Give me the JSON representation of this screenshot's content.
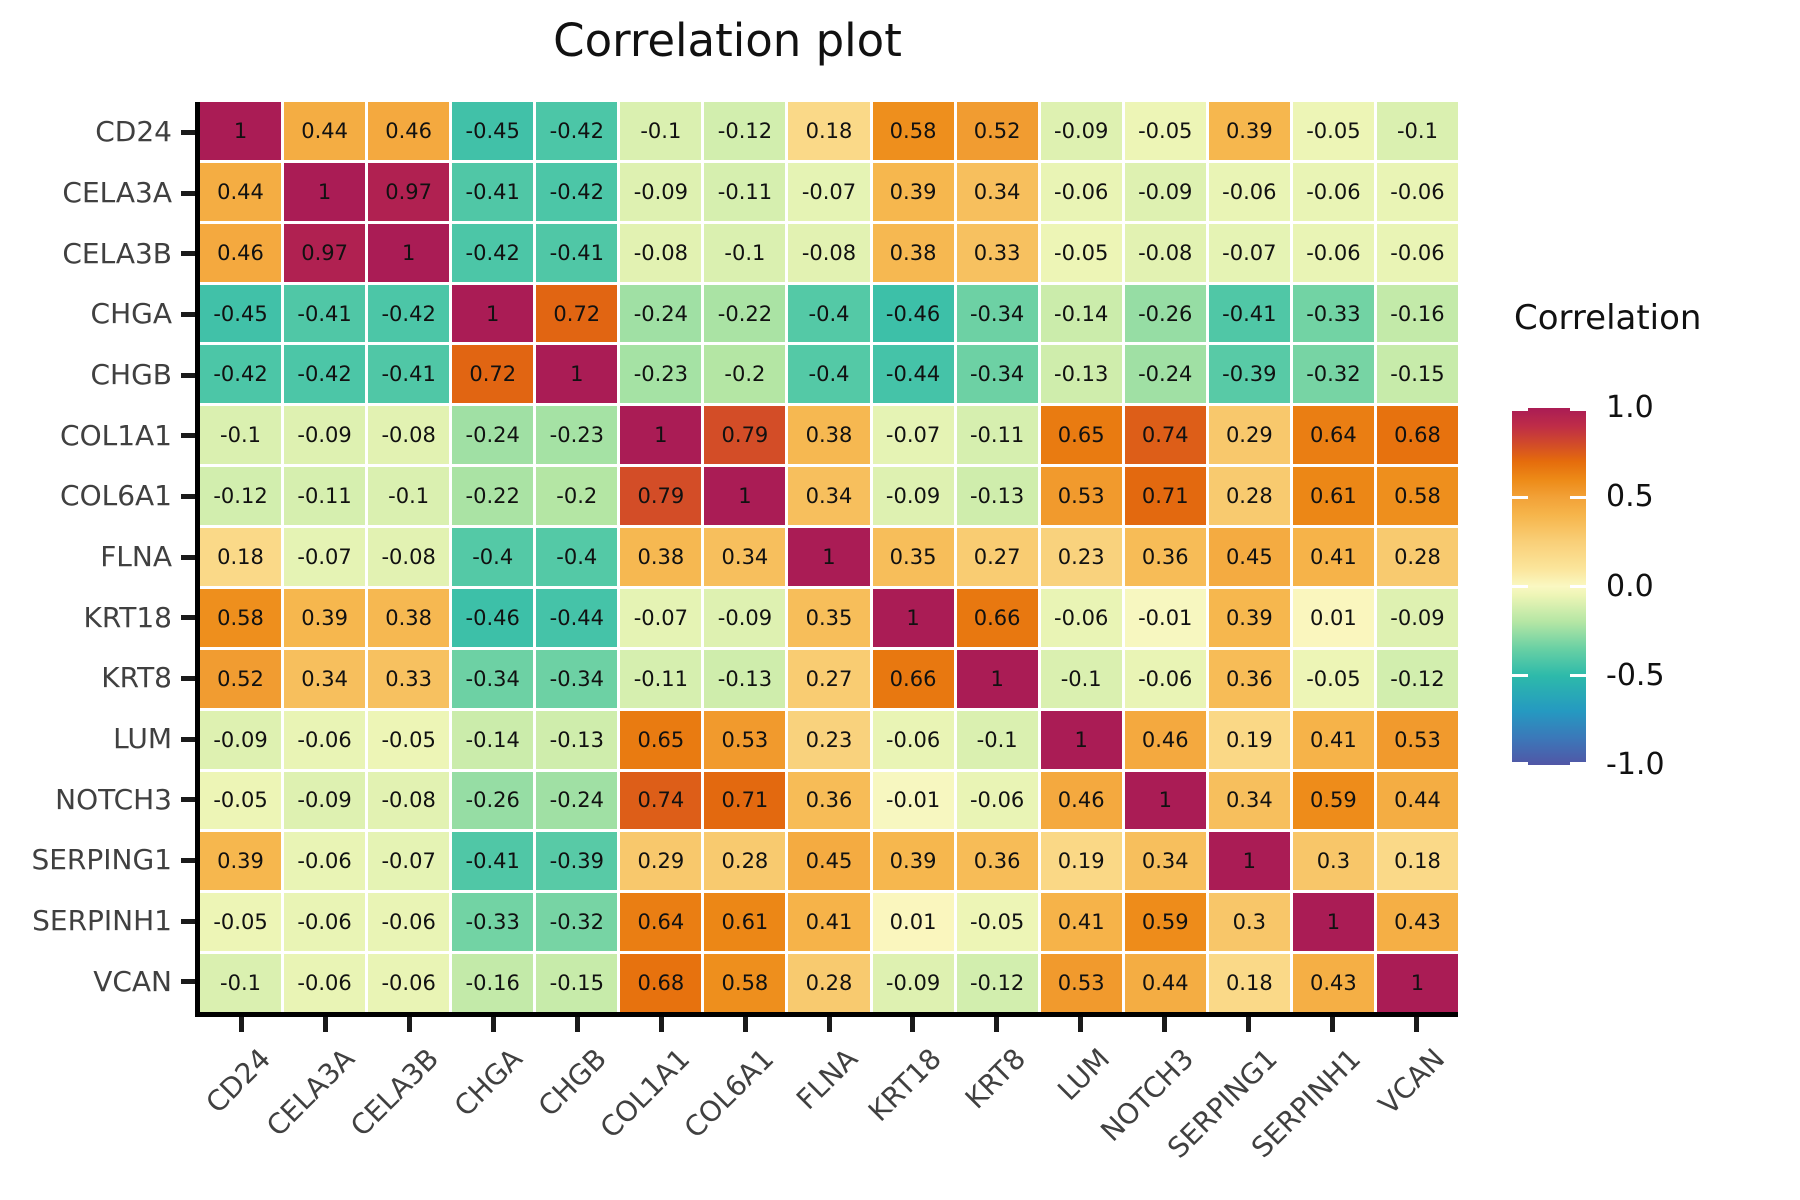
{
  "title": "Correlation plot",
  "legend": {
    "title": "Correlation",
    "tick_labels": [
      "1.0",
      "0.5",
      "0.0",
      "-0.5",
      "-1.0"
    ],
    "tick_values": [
      1.0,
      0.5,
      0.0,
      -0.5,
      -1.0
    ]
  },
  "chart_data": {
    "type": "heatmap",
    "title": "Correlation plot",
    "legend_title": "Correlation",
    "legend_position": "right",
    "value_range": [
      -1,
      1
    ],
    "legend_tick_labels": [
      "1.0",
      "0.5",
      "0.0",
      "-0.5",
      "-1.0"
    ],
    "legend_tick_values": [
      1.0,
      0.5,
      0.0,
      -0.5,
      -1.0
    ],
    "categories": [
      "CD24",
      "CELA3A",
      "CELA3B",
      "CHGA",
      "CHGB",
      "COL1A1",
      "COL6A1",
      "FLNA",
      "KRT18",
      "KRT8",
      "LUM",
      "NOTCH3",
      "SERPING1",
      "SERPINH1",
      "VCAN"
    ],
    "matrix": [
      [
        1,
        0.44,
        0.46,
        -0.45,
        -0.42,
        -0.1,
        -0.12,
        0.18,
        0.58,
        0.52,
        -0.09,
        -0.05,
        0.39,
        -0.05,
        -0.1
      ],
      [
        0.44,
        1,
        0.97,
        -0.41,
        -0.42,
        -0.09,
        -0.11,
        -0.07,
        0.39,
        0.34,
        -0.06,
        -0.09,
        -0.06,
        -0.06,
        -0.06
      ],
      [
        0.46,
        0.97,
        1,
        -0.42,
        -0.41,
        -0.08,
        -0.1,
        -0.08,
        0.38,
        0.33,
        -0.05,
        -0.08,
        -0.07,
        -0.06,
        -0.06
      ],
      [
        -0.45,
        -0.41,
        -0.42,
        1,
        0.72,
        -0.24,
        -0.22,
        -0.4,
        -0.46,
        -0.34,
        -0.14,
        -0.26,
        -0.41,
        -0.33,
        -0.16
      ],
      [
        -0.42,
        -0.42,
        -0.41,
        0.72,
        1,
        -0.23,
        -0.2,
        -0.4,
        -0.44,
        -0.34,
        -0.13,
        -0.24,
        -0.39,
        -0.32,
        -0.15
      ],
      [
        -0.1,
        -0.09,
        -0.08,
        -0.24,
        -0.23,
        1,
        0.79,
        0.38,
        -0.07,
        -0.11,
        0.65,
        0.74,
        0.29,
        0.64,
        0.68
      ],
      [
        -0.12,
        -0.11,
        -0.1,
        -0.22,
        -0.2,
        0.79,
        1,
        0.34,
        -0.09,
        -0.13,
        0.53,
        0.71,
        0.28,
        0.61,
        0.58
      ],
      [
        0.18,
        -0.07,
        -0.08,
        -0.4,
        -0.4,
        0.38,
        0.34,
        1,
        0.35,
        0.27,
        0.23,
        0.36,
        0.45,
        0.41,
        0.28
      ],
      [
        0.58,
        0.39,
        0.38,
        -0.46,
        -0.44,
        -0.07,
        -0.09,
        0.35,
        1,
        0.66,
        -0.06,
        -0.01,
        0.39,
        0.01,
        -0.09
      ],
      [
        0.52,
        0.34,
        0.33,
        -0.34,
        -0.34,
        -0.11,
        -0.13,
        0.27,
        0.66,
        1,
        -0.1,
        -0.06,
        0.36,
        -0.05,
        -0.12
      ],
      [
        -0.09,
        -0.06,
        -0.05,
        -0.14,
        -0.13,
        0.65,
        0.53,
        0.23,
        -0.06,
        -0.1,
        1,
        0.46,
        0.19,
        0.41,
        0.53
      ],
      [
        -0.05,
        -0.09,
        -0.08,
        -0.26,
        -0.24,
        0.74,
        0.71,
        0.36,
        -0.01,
        -0.06,
        0.46,
        1,
        0.34,
        0.59,
        0.44
      ],
      [
        0.39,
        -0.06,
        -0.07,
        -0.41,
        -0.39,
        0.29,
        0.28,
        0.45,
        0.39,
        0.36,
        0.19,
        0.34,
        1,
        0.3,
        0.18
      ],
      [
        -0.05,
        -0.06,
        -0.06,
        -0.33,
        -0.32,
        0.64,
        0.61,
        0.41,
        0.01,
        -0.05,
        0.41,
        0.59,
        0.3,
        1,
        0.43
      ],
      [
        -0.1,
        -0.06,
        -0.06,
        -0.16,
        -0.15,
        0.68,
        0.58,
        0.28,
        -0.09,
        -0.12,
        0.53,
        0.44,
        0.18,
        0.43,
        1
      ]
    ],
    "colors": {
      "cell_text": "#111111",
      "axis_label": "#404040",
      "axis_line": "#000000",
      "background": "#ffffff",
      "scale_stops": [
        {
          "v": -1.0,
          "c": "#5156A6"
        },
        {
          "v": -0.85,
          "c": "#3B78B9"
        },
        {
          "v": -0.7,
          "c": "#2599C1"
        },
        {
          "v": -0.5,
          "c": "#2DBAAA"
        },
        {
          "v": -0.35,
          "c": "#68D0A4"
        },
        {
          "v": -0.2,
          "c": "#B4E6A4"
        },
        {
          "v": -0.05,
          "c": "#EDF5B6"
        },
        {
          "v": 0.0,
          "c": "#FAF8C2"
        },
        {
          "v": 0.1,
          "c": "#FBE59B"
        },
        {
          "v": 0.25,
          "c": "#F9CF78"
        },
        {
          "v": 0.4,
          "c": "#F6B54B"
        },
        {
          "v": 0.5,
          "c": "#F2A137"
        },
        {
          "v": 0.6,
          "c": "#ED8A17"
        },
        {
          "v": 0.7,
          "c": "#E56C0C"
        },
        {
          "v": 0.8,
          "c": "#D14A2A"
        },
        {
          "v": 0.9,
          "c": "#BE2C48"
        },
        {
          "v": 1.0,
          "c": "#AA1C55"
        }
      ]
    }
  }
}
